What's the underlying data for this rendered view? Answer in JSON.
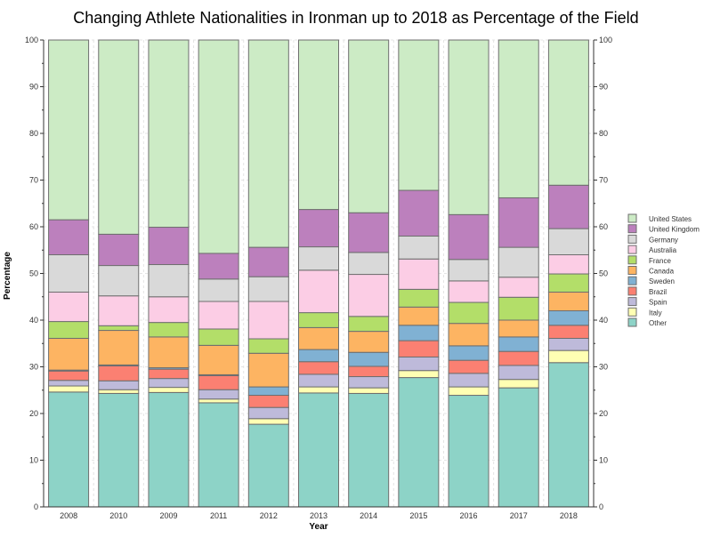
{
  "chart_data": {
    "type": "bar",
    "stacked": true,
    "title": "Changing Athlete Nationalities in Ironman up to 2018 as Percentage of the Field",
    "xlabel": "Year",
    "ylabel": "Percentage",
    "ylim": [
      0,
      100
    ],
    "yticks": [
      0,
      10,
      20,
      30,
      40,
      50,
      60,
      70,
      80,
      90,
      100
    ],
    "grid": true,
    "legend_position": "right",
    "categories": [
      "2008",
      "2010",
      "2009",
      "2011",
      "2012",
      "2013",
      "2014",
      "2015",
      "2016",
      "2017",
      "2018"
    ],
    "series": [
      {
        "name": "Other",
        "color": "#8dd3c7",
        "values": [
          24.6,
          24.3,
          24.5,
          22.3,
          17.7,
          24.4,
          24.3,
          27.7,
          23.9,
          25.5,
          30.9
        ]
      },
      {
        "name": "Italy",
        "color": "#ffffb3",
        "values": [
          1.3,
          0.8,
          1.1,
          0.8,
          1.2,
          1.3,
          1.2,
          1.5,
          1.8,
          1.8,
          2.6
        ]
      },
      {
        "name": "Spain",
        "color": "#bebada",
        "values": [
          1.2,
          1.9,
          1.9,
          2.0,
          2.4,
          2.7,
          2.4,
          2.9,
          2.9,
          3.0,
          2.6
        ]
      },
      {
        "name": "Brazil",
        "color": "#fb8072",
        "values": [
          2.0,
          3.2,
          2.0,
          3.0,
          2.6,
          2.7,
          2.2,
          3.5,
          2.8,
          3.0,
          2.8
        ]
      },
      {
        "name": "Sweden",
        "color": "#80b1d3",
        "values": [
          0.2,
          0.2,
          0.3,
          0.2,
          1.8,
          2.6,
          3.0,
          3.3,
          3.1,
          3.1,
          3.1
        ]
      },
      {
        "name": "Canada",
        "color": "#fdb462",
        "values": [
          6.8,
          7.4,
          6.6,
          6.3,
          7.2,
          4.7,
          4.5,
          3.9,
          4.8,
          3.6,
          4.0
        ]
      },
      {
        "name": "France",
        "color": "#b3de69",
        "values": [
          3.6,
          1.0,
          3.1,
          3.5,
          3.1,
          3.2,
          3.2,
          3.8,
          4.5,
          4.9,
          3.9
        ]
      },
      {
        "name": "Australia",
        "color": "#fccde5",
        "values": [
          6.3,
          6.4,
          5.5,
          5.9,
          8.0,
          9.1,
          9.0,
          6.5,
          4.6,
          4.3,
          4.1
        ]
      },
      {
        "name": "Germany",
        "color": "#d9d9d9",
        "values": [
          8.0,
          6.5,
          6.9,
          4.8,
          5.3,
          5.0,
          4.7,
          4.9,
          4.6,
          6.4,
          5.6
        ]
      },
      {
        "name": "United Kingdom",
        "color": "#bc80bd",
        "values": [
          7.5,
          6.7,
          8.0,
          5.5,
          6.3,
          8.0,
          8.5,
          9.8,
          9.6,
          10.6,
          9.3
        ]
      },
      {
        "name": "United States",
        "color": "#ccebc5",
        "values": [
          38.5,
          41.6,
          40.1,
          45.7,
          44.4,
          36.3,
          37.0,
          32.2,
          37.4,
          33.8,
          31.1
        ]
      }
    ]
  }
}
